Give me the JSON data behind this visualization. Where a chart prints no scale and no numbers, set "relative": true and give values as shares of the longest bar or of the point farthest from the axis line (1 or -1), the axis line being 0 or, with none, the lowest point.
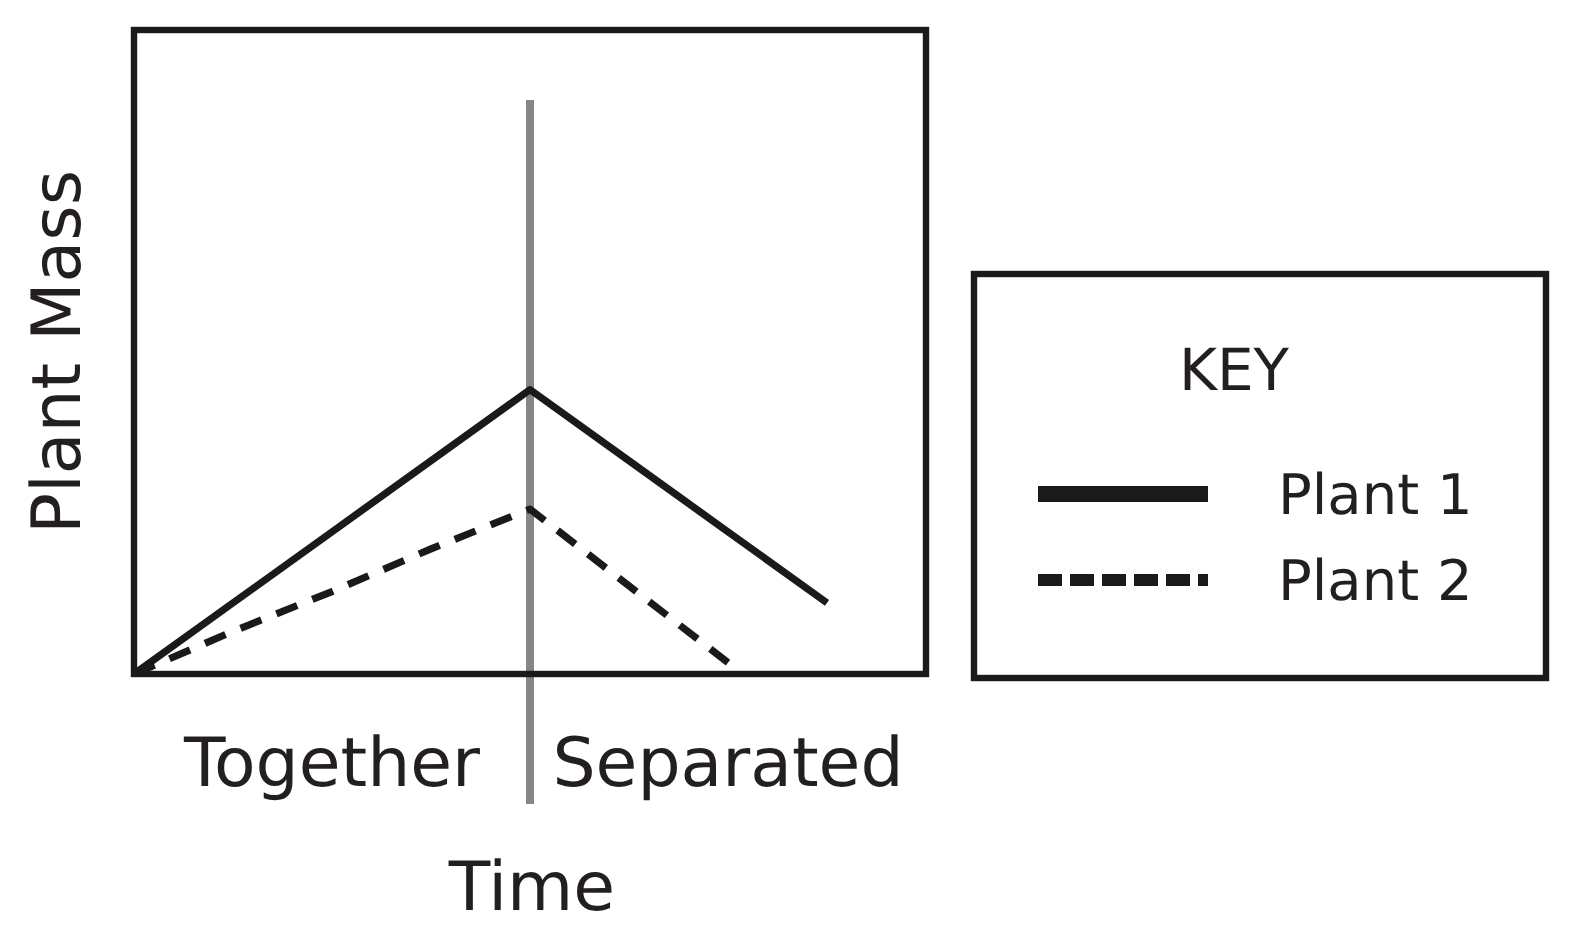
{
  "chart_data": {
    "type": "line",
    "xlabel": "Time",
    "ylabel": "Plant Mass",
    "relative": true,
    "categories": [
      null,
      null,
      "Together",
      null,
      null,
      null,
      "Separated",
      null,
      null
    ],
    "series": [
      {
        "name": "Plant 1",
        "color": "#1a1a1a",
        "values": [
          0,
          0.25,
          0.5,
          0.75,
          1,
          0.75,
          0.5,
          0.25,
          null
        ],
        "line_style": "solid"
      },
      {
        "name": "Plant 2",
        "color": "#1a1a1a",
        "values": [
          0,
          0.15,
          0.29,
          0.44,
          0.58,
          0.31,
          0.04,
          null,
          null
        ],
        "line_style": "dashed"
      }
    ],
    "legend": "right",
    "legend_title": "KEY"
  }
}
